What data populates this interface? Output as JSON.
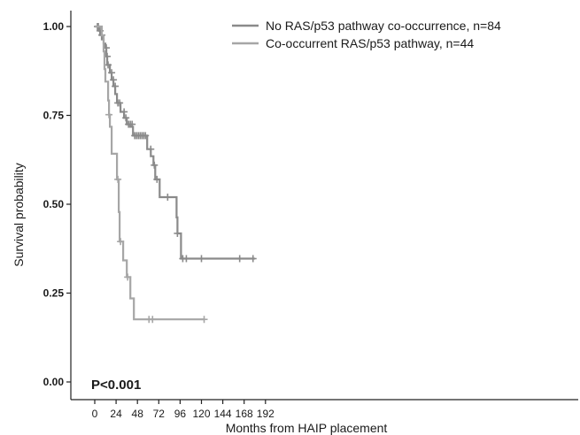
{
  "chart_data": {
    "type": "line",
    "subtype": "kaplan-meier",
    "title": "",
    "xlabel": "Months from HAIP placement",
    "ylabel": "Survival probability",
    "xlim": [
      -5,
      213
    ],
    "ylim": [
      0,
      1.0
    ],
    "x_ticks": [
      0,
      24,
      48,
      72,
      96,
      120,
      144,
      168,
      192
    ],
    "y_ticks": [
      0.0,
      0.25,
      0.5,
      0.75,
      1.0
    ],
    "y_tick_labels": [
      "0.00",
      "0.25",
      "0.50",
      "0.75",
      "1.00"
    ],
    "grid": false,
    "legend_position": "top-right",
    "annotation": "P<0.001",
    "series": [
      {
        "name": "No RAS/p53 pathway co-occurrence, n=84",
        "color": "#8a8a8a",
        "steps": [
          [
            0,
            1.0
          ],
          [
            5,
            0.988
          ],
          [
            6,
            0.976
          ],
          [
            8,
            0.964
          ],
          [
            10,
            0.952
          ],
          [
            12,
            0.94
          ],
          [
            13,
            0.916
          ],
          [
            14,
            0.892
          ],
          [
            17,
            0.87
          ],
          [
            19,
            0.85
          ],
          [
            21,
            0.832
          ],
          [
            23,
            0.81
          ],
          [
            25,
            0.785
          ],
          [
            29,
            0.76
          ],
          [
            33,
            0.743
          ],
          [
            36,
            0.725
          ],
          [
            40,
            0.718
          ],
          [
            43,
            0.693
          ],
          [
            59,
            0.655
          ],
          [
            63,
            0.635
          ],
          [
            66,
            0.61
          ],
          [
            68,
            0.57
          ],
          [
            73,
            0.52
          ],
          [
            92,
            0.463
          ],
          [
            93,
            0.418
          ],
          [
            97,
            0.347
          ],
          [
            180,
            0.347
          ]
        ],
        "censored": [
          [
            3,
            1.0
          ],
          [
            4,
            1.0
          ],
          [
            6,
            0.988
          ],
          [
            8,
            0.976
          ],
          [
            13,
            0.94
          ],
          [
            14,
            0.916
          ],
          [
            15,
            0.892
          ],
          [
            19,
            0.87
          ],
          [
            21,
            0.85
          ],
          [
            23,
            0.832
          ],
          [
            26,
            0.785
          ],
          [
            28,
            0.785
          ],
          [
            33,
            0.76
          ],
          [
            35,
            0.743
          ],
          [
            38,
            0.725
          ],
          [
            40,
            0.725
          ],
          [
            42,
            0.725
          ],
          [
            45,
            0.693
          ],
          [
            47,
            0.693
          ],
          [
            49,
            0.693
          ],
          [
            51,
            0.693
          ],
          [
            53,
            0.693
          ],
          [
            55,
            0.693
          ],
          [
            57,
            0.693
          ],
          [
            63,
            0.655
          ],
          [
            67,
            0.61
          ],
          [
            70,
            0.57
          ],
          [
            82,
            0.52
          ],
          [
            93,
            0.418
          ],
          [
            99,
            0.347
          ],
          [
            103,
            0.347
          ],
          [
            120,
            0.347
          ],
          [
            163,
            0.347
          ],
          [
            178,
            0.347
          ]
        ]
      },
      {
        "name": "Co-occurrent RAS/p53 pathway, n=44",
        "color": "#a6a6a6",
        "steps": [
          [
            0,
            1.0
          ],
          [
            8,
            0.975
          ],
          [
            10,
            0.93
          ],
          [
            11,
            0.88
          ],
          [
            12,
            0.845
          ],
          [
            15,
            0.792
          ],
          [
            16,
            0.752
          ],
          [
            17,
            0.718
          ],
          [
            19,
            0.642
          ],
          [
            25,
            0.57
          ],
          [
            27,
            0.478
          ],
          [
            28,
            0.395
          ],
          [
            32,
            0.342
          ],
          [
            36,
            0.295
          ],
          [
            40,
            0.235
          ],
          [
            44,
            0.176
          ],
          [
            124,
            0.176
          ]
        ],
        "censored": [
          [
            16,
            0.752
          ],
          [
            26,
            0.57
          ],
          [
            29,
            0.395
          ],
          [
            37,
            0.295
          ],
          [
            61,
            0.176
          ],
          [
            65,
            0.176
          ],
          [
            123,
            0.176
          ]
        ]
      }
    ]
  }
}
